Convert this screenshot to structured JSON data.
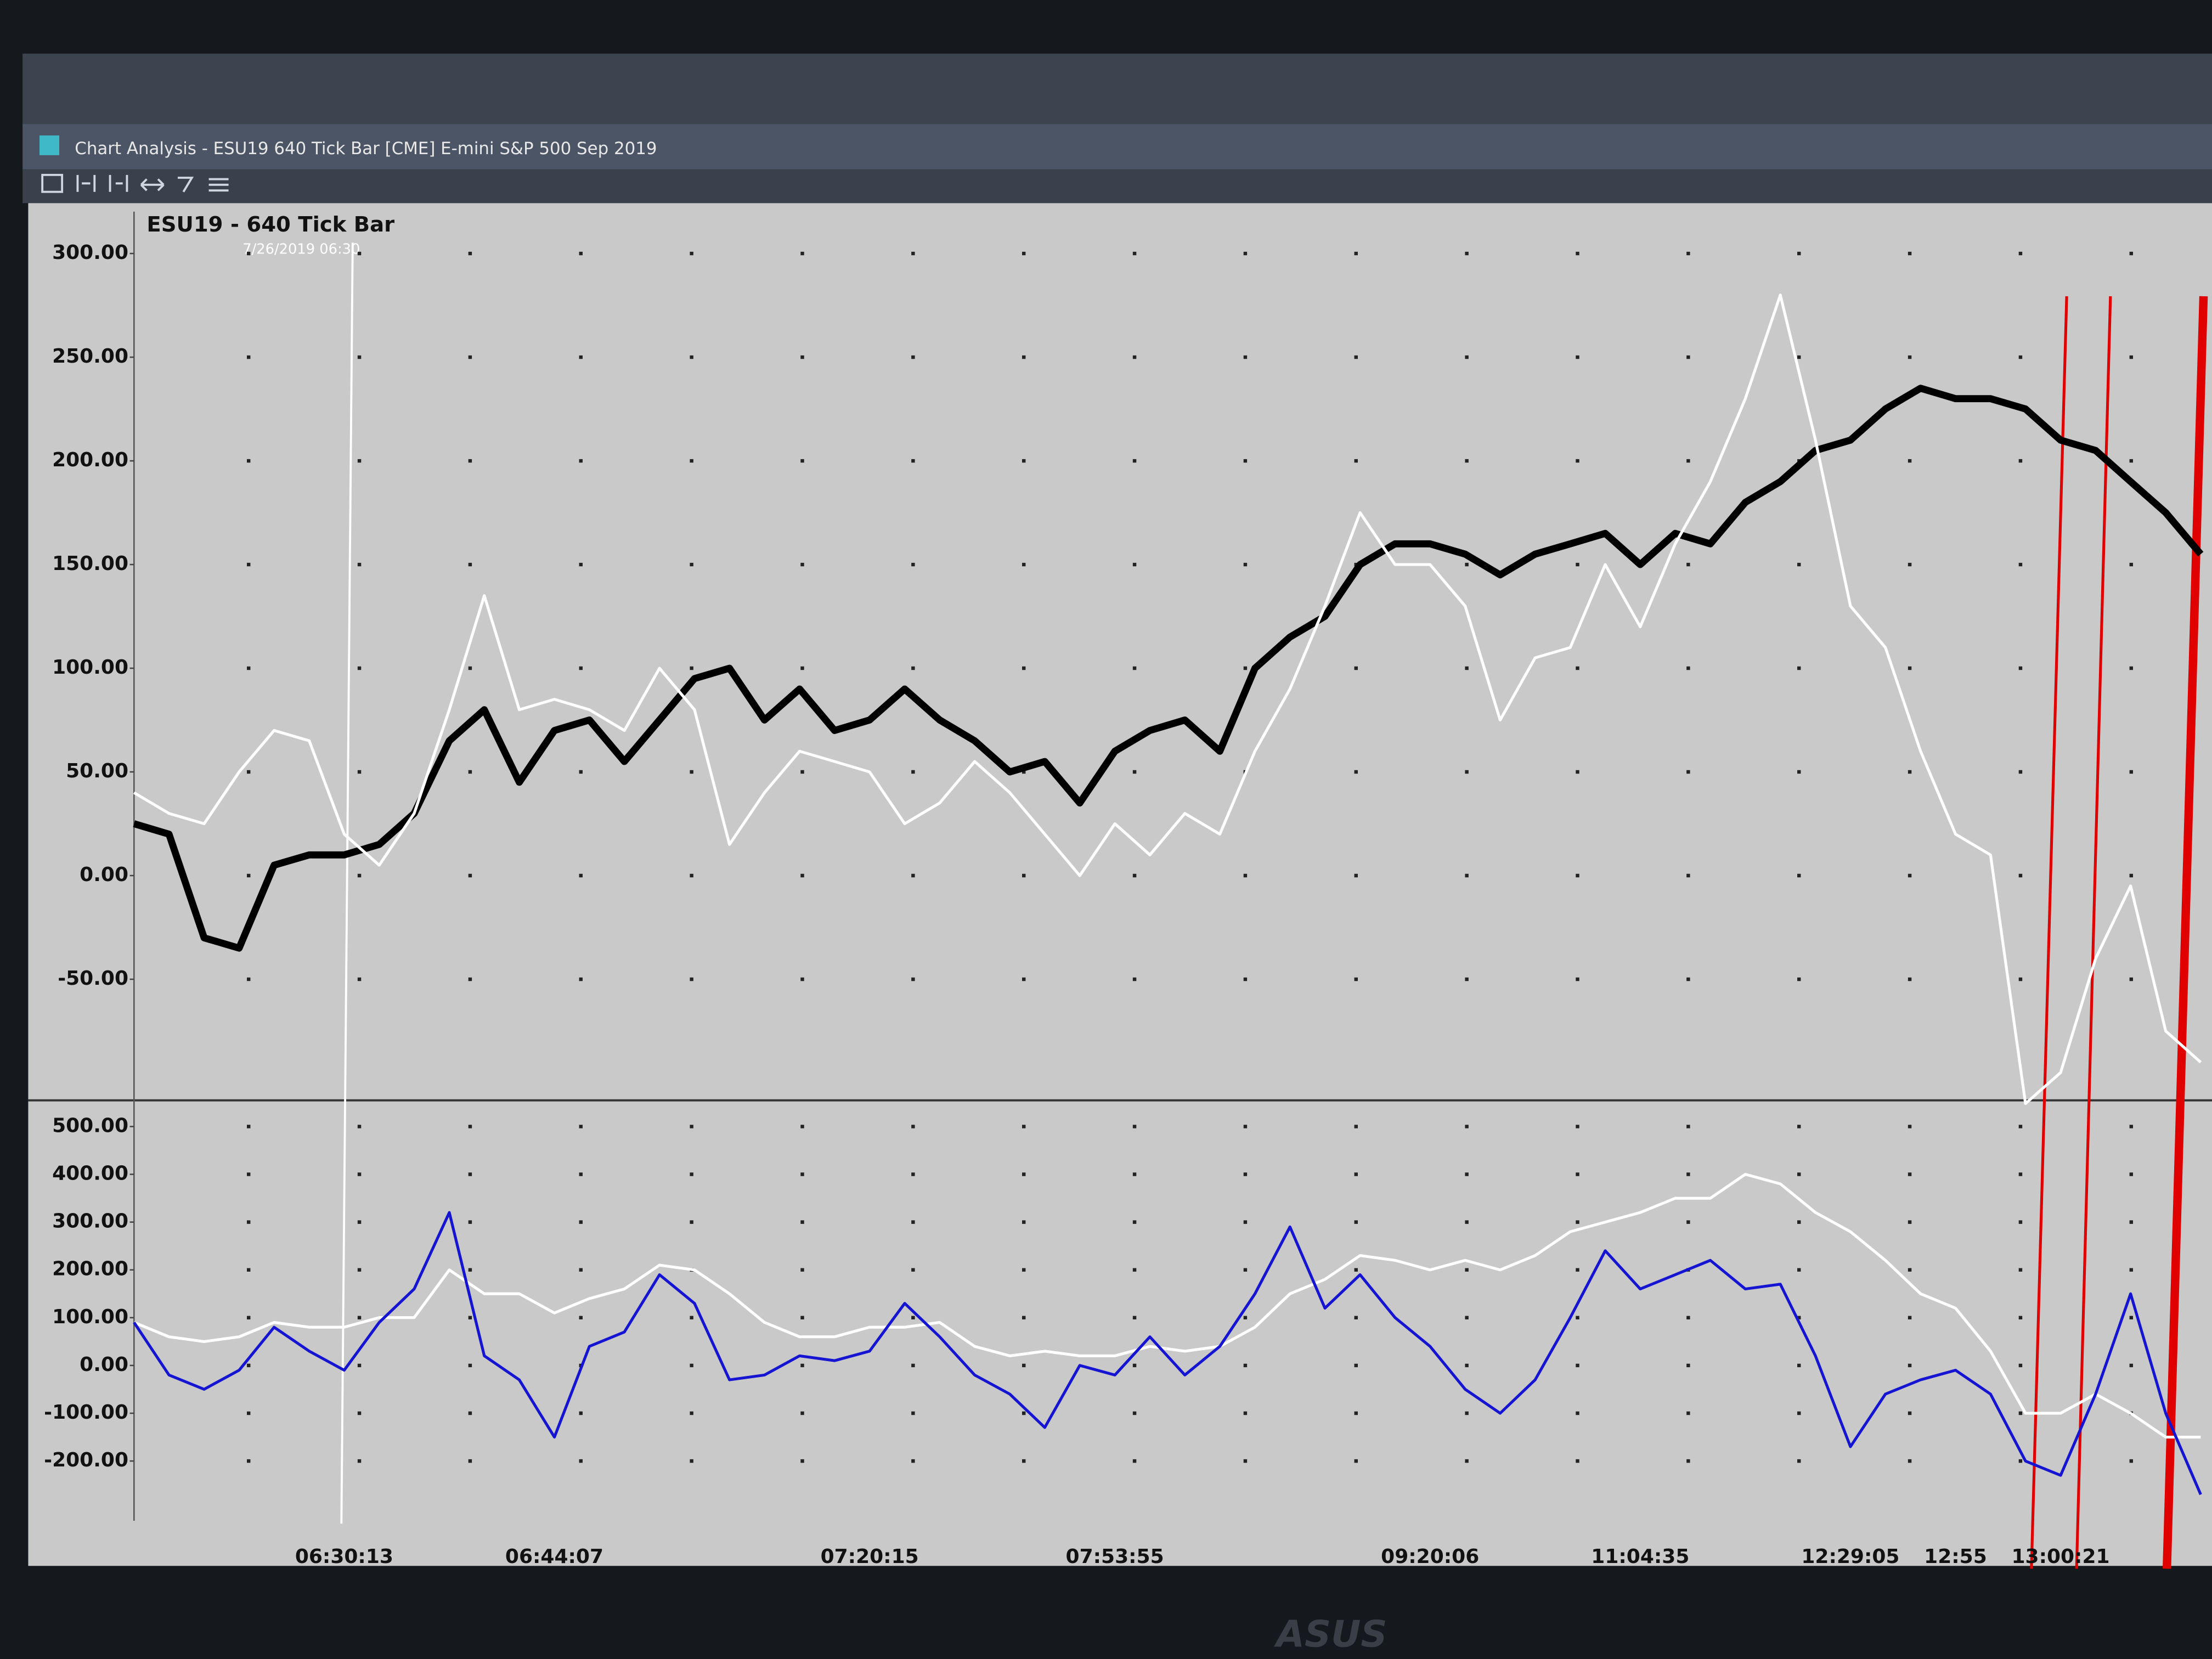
{
  "window": {
    "title": "Chart Analysis - ESU19 640 Tick Bar [CME] E-mini S&P 500 Sep 2019"
  },
  "bezel_brand": "ASUS",
  "chart_data": [
    {
      "type": "line",
      "title": "ESU19 - 640 Tick Bar",
      "annotation": "7/26/2019 06:30",
      "ylim": [
        -105,
        310
      ],
      "yticks": [
        {
          "value": -50,
          "label": "-50.00"
        },
        {
          "value": 0,
          "label": "0.00"
        },
        {
          "value": 50,
          "label": "50.00"
        },
        {
          "value": 100,
          "label": "100.00"
        },
        {
          "value": 150,
          "label": "150.00"
        },
        {
          "value": 200,
          "label": "200.00"
        },
        {
          "value": 250,
          "label": "250.00"
        },
        {
          "value": 300,
          "label": "300.00"
        }
      ],
      "grid": true,
      "series": [
        {
          "color": "#000000",
          "values": [
            25,
            20,
            -30,
            -35,
            5,
            10,
            10,
            15,
            30,
            65,
            80,
            45,
            70,
            75,
            55,
            75,
            95,
            100,
            75,
            90,
            70,
            75,
            90,
            75,
            65,
            50,
            55,
            35,
            60,
            70,
            75,
            60,
            100,
            115,
            125,
            150,
            160,
            160,
            155,
            145,
            155,
            160,
            165,
            150,
            165,
            160,
            180,
            190,
            205,
            210,
            225,
            235,
            230,
            230,
            225,
            210,
            205,
            190,
            175,
            155
          ]
        },
        {
          "color": "#ffffff",
          "values": [
            40,
            30,
            25,
            50,
            70,
            65,
            20,
            5,
            30,
            80,
            135,
            80,
            85,
            80,
            70,
            100,
            80,
            15,
            40,
            60,
            55,
            50,
            25,
            35,
            55,
            40,
            20,
            0,
            25,
            10,
            30,
            20,
            60,
            90,
            130,
            175,
            150,
            150,
            130,
            75,
            105,
            110,
            150,
            120,
            160,
            190,
            230,
            280,
            210,
            130,
            110,
            60,
            20,
            10,
            -110,
            -95,
            -40,
            -5,
            -75,
            -90
          ]
        }
      ]
    },
    {
      "type": "line",
      "ylim": [
        -325,
        540
      ],
      "yticks": [
        {
          "value": -200,
          "label": "-200.00"
        },
        {
          "value": -100,
          "label": "-100.00"
        },
        {
          "value": 0,
          "label": "0.00"
        },
        {
          "value": 100,
          "label": "100.00"
        },
        {
          "value": 200,
          "label": "200.00"
        },
        {
          "value": 300,
          "label": "300.00"
        },
        {
          "value": 400,
          "label": "400.00"
        },
        {
          "value": 500,
          "label": "500.00"
        }
      ],
      "grid": true,
      "categories": [
        null,
        null,
        null,
        null,
        null,
        null,
        "06:30:13",
        null,
        null,
        null,
        null,
        null,
        "06:44:07",
        null,
        null,
        null,
        null,
        null,
        null,
        null,
        null,
        "07:20:15",
        null,
        null,
        null,
        null,
        null,
        null,
        "07:53:55",
        null,
        null,
        null,
        null,
        null,
        null,
        null,
        null,
        "09:20:06",
        null,
        null,
        null,
        null,
        null,
        "11:04:35",
        null,
        null,
        null,
        null,
        null,
        "12:29:05",
        null,
        null,
        "12:55",
        null,
        null,
        "13:00:21",
        null,
        null,
        null,
        null
      ],
      "series": [
        {
          "color": "#ffffff",
          "values": [
            90,
            60,
            50,
            60,
            90,
            80,
            80,
            100,
            100,
            200,
            150,
            150,
            110,
            140,
            160,
            210,
            200,
            150,
            90,
            60,
            60,
            80,
            80,
            90,
            40,
            20,
            30,
            20,
            20,
            40,
            30,
            40,
            80,
            150,
            180,
            230,
            220,
            200,
            220,
            200,
            230,
            280,
            300,
            320,
            350,
            350,
            400,
            380,
            320,
            280,
            220,
            150,
            120,
            30,
            -100,
            -100,
            -60,
            -100,
            -150,
            -150
          ]
        },
        {
          "color": "#1414d2",
          "values": [
            90,
            -20,
            -50,
            -10,
            80,
            30,
            -10,
            90,
            160,
            320,
            20,
            -30,
            -150,
            40,
            70,
            190,
            130,
            -30,
            -20,
            20,
            10,
            30,
            130,
            60,
            -20,
            -60,
            -130,
            0,
            -20,
            60,
            -20,
            40,
            150,
            290,
            120,
            190,
            100,
            40,
            -50,
            -100,
            -30,
            100,
            240,
            160,
            190,
            220,
            160,
            170,
            20,
            -170,
            -60,
            -30,
            -10,
            -60,
            -200,
            -230,
            -60,
            150,
            -100,
            -270
          ]
        }
      ]
    }
  ]
}
